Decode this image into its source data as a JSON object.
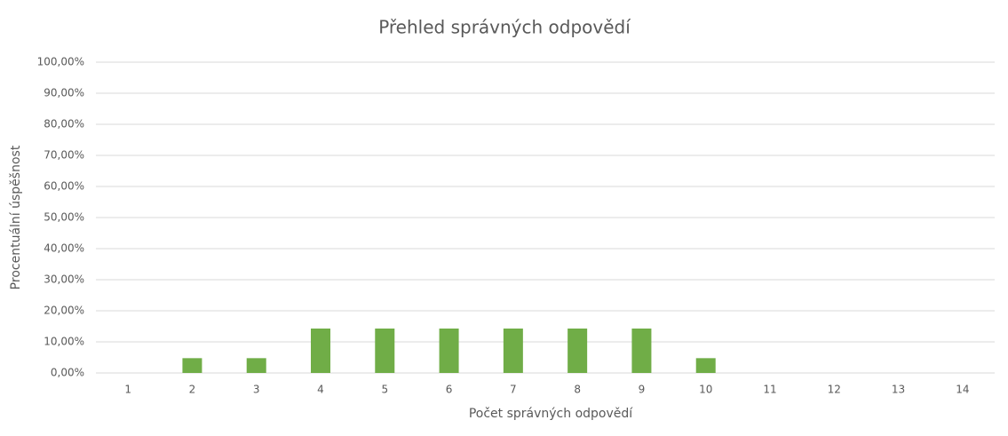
{
  "chart_data": {
    "type": "bar",
    "title": "Přehled správných odpovědí",
    "x_label": "Počet správných odpovědí",
    "y_label": "Procentuální úspěšnost",
    "categories": [
      1,
      2,
      3,
      4,
      5,
      6,
      7,
      8,
      9,
      10,
      11,
      12,
      13,
      14
    ],
    "values": [
      0,
      4.76,
      4.76,
      14.29,
      14.29,
      14.29,
      14.29,
      14.29,
      14.29,
      4.76,
      0,
      0,
      0,
      0
    ],
    "color": "#70ad47",
    "ylim": [
      0,
      100
    ],
    "yticks": [
      {
        "value": 0,
        "label": "0,00%"
      },
      {
        "value": 10,
        "label": "10,00%"
      },
      {
        "value": 20,
        "label": "20,00%"
      },
      {
        "value": 30,
        "label": "30,00%"
      },
      {
        "value": 40,
        "label": "40,00%"
      },
      {
        "value": 50,
        "label": "50,00%"
      },
      {
        "value": 60,
        "label": "60,00%"
      },
      {
        "value": 70,
        "label": "70,00%"
      },
      {
        "value": 80,
        "label": "80,00%"
      },
      {
        "value": 90,
        "label": "90,00%"
      },
      {
        "value": 100,
        "label": "100,00%"
      }
    ],
    "grid": true
  }
}
